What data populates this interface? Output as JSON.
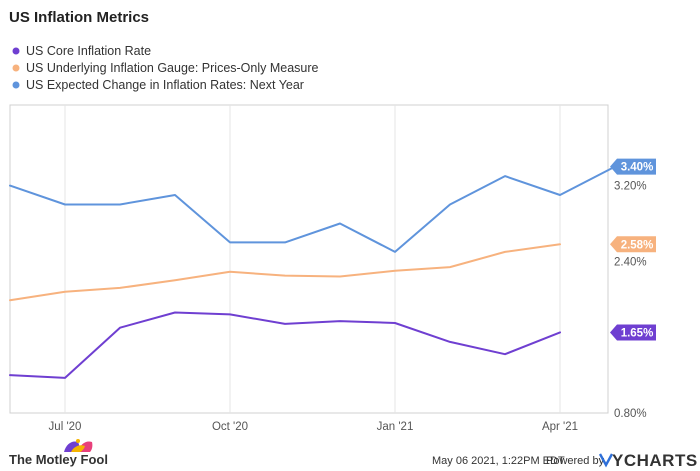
{
  "chart_data": {
    "type": "line",
    "title": "US Inflation Metrics",
    "x_tick_labels": [
      "Jul '20",
      "Oct '20",
      "Jan '21",
      "Apr '21"
    ],
    "x_ticks": [
      "2020-07",
      "2020-10",
      "2021-01",
      "2021-04"
    ],
    "x": [
      "2020-06",
      "2020-07",
      "2020-08",
      "2020-09",
      "2020-10",
      "2020-11",
      "2020-12",
      "2021-01",
      "2021-02",
      "2021-03",
      "2021-04",
      "2021-05"
    ],
    "y_ticks": [
      0.8,
      2.4,
      3.2
    ],
    "y_tick_labels": [
      "0.80%",
      "2.40%",
      "3.20%"
    ],
    "ylim": [
      0.8,
      4.05
    ],
    "grid": true,
    "legend": "top-left",
    "series": [
      {
        "name": "US Core Inflation Rate",
        "color": "#6f3fd1",
        "values": [
          1.2,
          1.17,
          1.7,
          1.86,
          1.84,
          1.74,
          1.77,
          1.75,
          1.55,
          1.42,
          1.65,
          null
        ],
        "last_label": "1.65%"
      },
      {
        "name": "US Underlying Inflation Gauge: Prices-Only Measure",
        "color": "#f7b27e",
        "values": [
          1.99,
          2.08,
          2.12,
          2.2,
          2.29,
          2.25,
          2.24,
          2.3,
          2.34,
          2.5,
          2.58,
          null
        ],
        "last_label": "2.58%"
      },
      {
        "name": "US Expected Change in Inflation Rates: Next Year",
        "color": "#5f94dc",
        "values": [
          3.2,
          3.0,
          3.0,
          3.1,
          2.6,
          2.6,
          2.8,
          2.5,
          3.0,
          3.3,
          3.1,
          3.4
        ],
        "last_label": "3.40%"
      }
    ]
  },
  "footer": {
    "brand": "The Motley Fool",
    "timestamp": "May 06 2021, 1:22PM EDT.",
    "powered_by": "Powered by",
    "ycharts": "YCHARTS"
  }
}
